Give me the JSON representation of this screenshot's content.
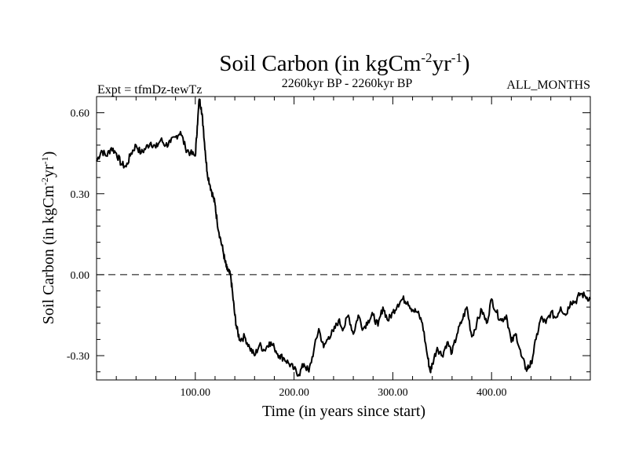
{
  "header": {
    "title_main": "Soil Carbon (in kgCm",
    "title_sup1": "-2",
    "title_mid": "yr",
    "title_sup2": "-1",
    "title_end": ")",
    "expt": "Expt = tfmDz-tewTz",
    "period": "2260kyr BP - 2260kyr BP",
    "months": "ALL_MONTHS"
  },
  "axes": {
    "ylabel_main": "Soil Carbon (in kgCm",
    "ylabel_sup1": "-2",
    "ylabel_mid": "yr",
    "ylabel_sup2": "-1",
    "ylabel_end": ")",
    "xlabel": "Time (in years since start)"
  },
  "chart_data": {
    "type": "line",
    "title": "Soil Carbon (in kgCm-2yr-1)",
    "xlabel": "Time (in years since start)",
    "ylabel": "Soil Carbon (in kgCm-2yr-1)",
    "xlim": [
      0,
      500
    ],
    "ylim": [
      -0.39,
      0.66
    ],
    "xticks": [
      100,
      200,
      300,
      400
    ],
    "xtick_labels": [
      "100.00",
      "200.00",
      "300.00",
      "400.00"
    ],
    "yticks": [
      -0.3,
      0.0,
      0.3,
      0.6
    ],
    "ytick_labels": [
      "-0.30",
      "0.00",
      "0.30",
      "0.60"
    ],
    "zero_line": 0.0,
    "series": [
      {
        "name": "Soil Carbon",
        "color": "#000000",
        "x": [
          0,
          5,
          10,
          15,
          20,
          25,
          30,
          35,
          40,
          45,
          50,
          55,
          60,
          65,
          70,
          75,
          80,
          85,
          90,
          95,
          100,
          102,
          104,
          106,
          108,
          110,
          112,
          115,
          118,
          120,
          122,
          125,
          128,
          130,
          132,
          134,
          136,
          138,
          140,
          142,
          145,
          150,
          155,
          160,
          165,
          170,
          175,
          180,
          185,
          190,
          195,
          200,
          205,
          210,
          215,
          220,
          225,
          230,
          235,
          240,
          245,
          250,
          255,
          260,
          265,
          270,
          275,
          280,
          285,
          290,
          295,
          300,
          305,
          310,
          315,
          320,
          325,
          330,
          335,
          338,
          340,
          345,
          350,
          355,
          360,
          365,
          370,
          375,
          380,
          385,
          390,
          395,
          400,
          405,
          410,
          415,
          420,
          425,
          430,
          435,
          438,
          440,
          445,
          450,
          455,
          460,
          465,
          470,
          475,
          480,
          485,
          490,
          495,
          500
        ],
        "y": [
          0.42,
          0.46,
          0.44,
          0.47,
          0.45,
          0.41,
          0.4,
          0.45,
          0.48,
          0.45,
          0.47,
          0.49,
          0.47,
          0.5,
          0.48,
          0.49,
          0.51,
          0.53,
          0.47,
          0.45,
          0.44,
          0.55,
          0.65,
          0.62,
          0.55,
          0.46,
          0.38,
          0.33,
          0.29,
          0.26,
          0.2,
          0.14,
          0.09,
          0.05,
          0.02,
          0.01,
          -0.01,
          -0.08,
          -0.15,
          -0.2,
          -0.24,
          -0.23,
          -0.27,
          -0.3,
          -0.26,
          -0.28,
          -0.25,
          -0.27,
          -0.3,
          -0.31,
          -0.33,
          -0.35,
          -0.37,
          -0.33,
          -0.36,
          -0.28,
          -0.2,
          -0.27,
          -0.23,
          -0.21,
          -0.17,
          -0.2,
          -0.15,
          -0.22,
          -0.15,
          -0.2,
          -0.17,
          -0.15,
          -0.19,
          -0.12,
          -0.17,
          -0.14,
          -0.11,
          -0.09,
          -0.1,
          -0.13,
          -0.14,
          -0.18,
          -0.3,
          -0.36,
          -0.33,
          -0.27,
          -0.3,
          -0.25,
          -0.29,
          -0.22,
          -0.17,
          -0.12,
          -0.23,
          -0.18,
          -0.13,
          -0.18,
          -0.09,
          -0.14,
          -0.17,
          -0.15,
          -0.25,
          -0.22,
          -0.3,
          -0.35,
          -0.34,
          -0.33,
          -0.24,
          -0.16,
          -0.18,
          -0.14,
          -0.16,
          -0.12,
          -0.15,
          -0.1,
          -0.1,
          -0.07,
          -0.08,
          -0.09
        ]
      }
    ]
  }
}
